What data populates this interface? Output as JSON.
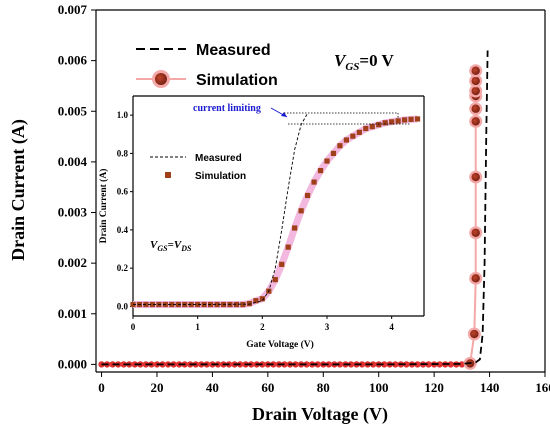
{
  "chart_data": [
    {
      "type": "scatter",
      "xlabel": "Drain Voltage (V)",
      "ylabel": "Drain Current (A)",
      "xlim": [
        -2,
        160
      ],
      "ylim": [
        -0.00015,
        0.007
      ],
      "xticks": [
        "0",
        "20",
        "40",
        "60",
        "80",
        "100",
        "120",
        "140",
        "160"
      ],
      "yticks": [
        "0.000",
        "0.001",
        "0.002",
        "0.003",
        "0.004",
        "0.005",
        "0.006",
        "0.007"
      ],
      "condition": {
        "symbol": "V",
        "sub": "GS",
        "rest": "=0 V"
      },
      "legend": [
        {
          "label": "Measured",
          "style": "dashed-line",
          "color": "#000000"
        },
        {
          "label": "Simulation",
          "style": "circle-marker",
          "color": "#a52a2a"
        }
      ],
      "legend_position": "top-left",
      "measured": {
        "x": [
          0,
          60,
          100,
          130,
          135,
          136.5,
          137.5,
          138.2,
          138.8,
          139.3
        ],
        "y": [
          0,
          0,
          0,
          1e-05,
          4e-05,
          0.0001,
          0.0006,
          0.002,
          0.0045,
          0.0062
        ]
      },
      "simulation": {
        "x": [
          0,
          5,
          10,
          15,
          20,
          25,
          30,
          35,
          40,
          45,
          50,
          55,
          60,
          65,
          70,
          75,
          80,
          85,
          90,
          95,
          100,
          105,
          110,
          115,
          120,
          125,
          130,
          133,
          134.5,
          135,
          135,
          135,
          135,
          135,
          135,
          135,
          135,
          135
        ],
        "y": [
          0,
          0,
          0,
          0,
          0,
          0,
          0,
          0,
          0,
          0,
          0,
          0,
          0,
          0,
          0,
          0,
          0,
          0,
          0,
          0,
          0,
          0,
          0,
          0,
          0,
          0,
          0,
          2e-05,
          0.0006,
          0.0017,
          0.0026,
          0.0037,
          0.0048,
          0.00505,
          0.0053,
          0.0054,
          0.0056,
          0.0058
        ]
      },
      "measured_scatter": {
        "x": [
          0,
          2,
          4,
          6,
          8,
          10,
          12,
          14,
          16,
          18,
          20,
          22,
          24,
          26,
          28,
          30,
          32,
          34,
          36,
          38,
          40,
          42,
          44,
          46,
          48,
          50,
          52,
          54,
          56,
          58,
          60,
          62,
          64,
          66,
          68,
          70,
          72,
          74,
          76,
          78,
          80,
          82,
          84,
          86,
          88,
          90,
          92,
          94,
          96,
          98,
          100,
          102,
          104,
          106,
          108,
          110,
          112,
          114,
          116,
          118,
          120,
          122,
          124,
          126,
          128,
          130,
          132
        ],
        "y": [
          0,
          0,
          0,
          0,
          0,
          0,
          0,
          0,
          0,
          0,
          0,
          0,
          0,
          0,
          0,
          0,
          0,
          0,
          0,
          0,
          0,
          0,
          0,
          0,
          0,
          0,
          0,
          0,
          0,
          0,
          0,
          0,
          0,
          0,
          0,
          0,
          0,
          0,
          0,
          0,
          0,
          0,
          0,
          0,
          0,
          0,
          0,
          0,
          0,
          0,
          0,
          0,
          0,
          0,
          0,
          0,
          0,
          0,
          0,
          0,
          0,
          0,
          0,
          0,
          0,
          0,
          0
        ]
      }
    },
    {
      "type": "line",
      "inset": true,
      "xlabel": "Gate Voltage (V)",
      "ylabel": "Drain Current (A)",
      "xlim": [
        0,
        4.5
      ],
      "ylim": [
        -0.05,
        1.1
      ],
      "xticks": [
        "0",
        "1",
        "2",
        "3",
        "4"
      ],
      "yticks": [
        "0.0",
        "0.2",
        "0.4",
        "0.6",
        "0.8",
        "1.0"
      ],
      "condition": {
        "symbol": "V",
        "sub": "GS",
        "eq": "=",
        "symbol2": "V",
        "sub2": "DS"
      },
      "annotation": "current limiting",
      "legend": [
        {
          "label": "Measured",
          "style": "dashed-line",
          "color": "#000000"
        },
        {
          "label": "Simulation",
          "style": "square-marker",
          "color": "#a0401a"
        }
      ],
      "legend_position": "left",
      "measured": {
        "x": [
          0,
          1.0,
          1.8,
          2.0,
          2.1,
          2.2,
          2.3,
          2.4,
          2.5,
          2.6,
          2.7
        ],
        "y": [
          0.01,
          0.01,
          0.012,
          0.03,
          0.08,
          0.2,
          0.4,
          0.62,
          0.82,
          0.95,
          1.01
        ]
      },
      "simulation": {
        "x": [
          0,
          0.1,
          0.2,
          0.3,
          0.4,
          0.5,
          0.6,
          0.7,
          0.8,
          0.9,
          1.0,
          1.1,
          1.2,
          1.3,
          1.4,
          1.5,
          1.6,
          1.7,
          1.8,
          1.9,
          2.0,
          2.1,
          2.2,
          2.3,
          2.4,
          2.5,
          2.6,
          2.7,
          2.8,
          2.9,
          3.0,
          3.1,
          3.2,
          3.3,
          3.4,
          3.5,
          3.6,
          3.7,
          3.8,
          3.9,
          4.0,
          4.1,
          4.2,
          4.3,
          4.4
        ],
        "y": [
          0.01,
          0.01,
          0.01,
          0.01,
          0.01,
          0.01,
          0.01,
          0.01,
          0.01,
          0.01,
          0.01,
          0.01,
          0.01,
          0.01,
          0.01,
          0.01,
          0.01,
          0.01,
          0.015,
          0.03,
          0.04,
          0.08,
          0.14,
          0.22,
          0.31,
          0.41,
          0.5,
          0.58,
          0.65,
          0.71,
          0.76,
          0.8,
          0.84,
          0.87,
          0.89,
          0.91,
          0.93,
          0.94,
          0.95,
          0.96,
          0.965,
          0.97,
          0.975,
          0.978,
          0.98
        ]
      }
    }
  ]
}
